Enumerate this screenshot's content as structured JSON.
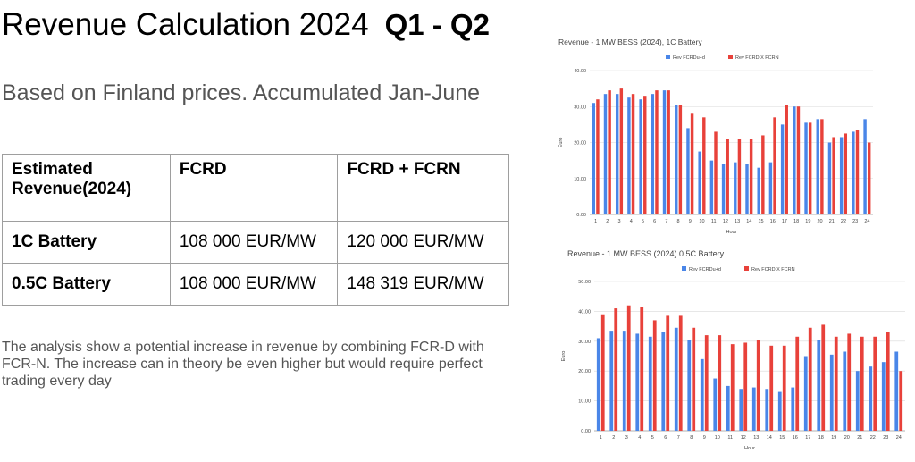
{
  "slide": {
    "title": "Revenue Calculation 2024",
    "title_quarter": "Q1 - Q2",
    "subtitle": "Based on Finland prices. Accumulated Jan-June",
    "analysis": "The analysis show a potential increase in revenue by combining FCR-D with FCR-N. The increase can in theory be even higher but would require perfect trading every day"
  },
  "table": {
    "headers": [
      "Estimated Revenue(2024)",
      "FCRD",
      "FCRD + FCRN"
    ],
    "rows": [
      {
        "label": "1C Battery",
        "fcrd": "108 000 EUR/MW",
        "fcrd_fcrn": "120 000 EUR/MW"
      },
      {
        "label": "0.5C Battery",
        "fcrd": "108 000 EUR/MW",
        "fcrd_fcrn": "148 319 EUR/MW"
      }
    ]
  },
  "colors": {
    "series_blue": "#4a86e8",
    "series_red": "#e8413a",
    "grid": "#d9d9d9",
    "axis_text": "#444444"
  },
  "chart_data": [
    {
      "type": "bar",
      "title": "Revenue - 1 MW BESS (2024), 1C Battery",
      "xlabel": "Hour",
      "ylabel": "Euro",
      "ylim": [
        0,
        40
      ],
      "yticks": [
        "0.00",
        "10.00",
        "20.00",
        "30.00",
        "40.00"
      ],
      "legend_position": "top-center",
      "categories": [
        "1",
        "2",
        "3",
        "4",
        "5",
        "6",
        "7",
        "8",
        "9",
        "10",
        "11",
        "12",
        "13",
        "14",
        "15",
        "16",
        "17",
        "18",
        "19",
        "20",
        "21",
        "22",
        "23",
        "24"
      ],
      "series": [
        {
          "name": "Rev FCRDu+d",
          "color": "#4a86e8",
          "values": [
            31.0,
            33.5,
            33.5,
            32.5,
            32.0,
            33.5,
            34.5,
            30.5,
            24.0,
            17.5,
            15.0,
            14.0,
            14.5,
            14.0,
            13.0,
            14.5,
            25.0,
            30.0,
            25.5,
            26.5,
            20.0,
            21.5,
            23.0,
            26.5
          ]
        },
        {
          "name": "Rev FCRD X FCRN",
          "color": "#e8413a",
          "values": [
            32.0,
            34.5,
            35.0,
            33.5,
            33.0,
            34.5,
            34.5,
            30.5,
            28.0,
            27.0,
            23.0,
            21.0,
            21.0,
            21.0,
            22.0,
            27.0,
            30.5,
            30.0,
            25.5,
            26.5,
            21.5,
            22.5,
            23.5,
            20.0
          ]
        }
      ]
    },
    {
      "type": "bar",
      "title": "Revenue - 1 MW BESS (2024) 0.5C Battery",
      "xlabel": "Hour",
      "ylabel": "Euro",
      "ylim": [
        0,
        50
      ],
      "yticks": [
        "0.00",
        "10.00",
        "20.00",
        "30.00",
        "40.00",
        "50.00"
      ],
      "legend_position": "top-center",
      "categories": [
        "1",
        "2",
        "3",
        "4",
        "5",
        "6",
        "7",
        "8",
        "9",
        "10",
        "11",
        "12",
        "13",
        "14",
        "15",
        "16",
        "17",
        "18",
        "19",
        "20",
        "21",
        "22",
        "23",
        "24"
      ],
      "series": [
        {
          "name": "Rev FCRDu+d",
          "color": "#4a86e8",
          "values": [
            31.0,
            33.5,
            33.5,
            32.5,
            31.5,
            33.0,
            34.5,
            30.5,
            24.0,
            17.5,
            15.0,
            14.0,
            14.5,
            14.0,
            13.0,
            14.5,
            25.0,
            30.5,
            25.5,
            26.5,
            20.0,
            21.5,
            23.0,
            26.5
          ]
        },
        {
          "name": "Rev FCRD X FCRN",
          "color": "#e8413a",
          "values": [
            39.0,
            41.0,
            42.0,
            41.5,
            37.0,
            38.5,
            38.5,
            34.5,
            32.0,
            32.0,
            29.0,
            29.5,
            30.5,
            28.5,
            28.5,
            31.5,
            34.5,
            35.5,
            31.5,
            32.5,
            31.5,
            31.5,
            33.0,
            20.0
          ]
        }
      ]
    }
  ]
}
